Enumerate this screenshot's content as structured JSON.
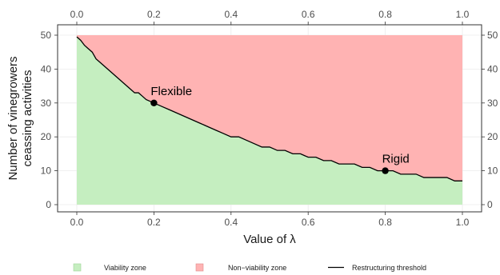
{
  "chart_data": {
    "type": "area",
    "xlabel": "Value of λ",
    "ylabel": [
      "Number of vinegrowers",
      "ceassing activities"
    ],
    "xlim": [
      0,
      1
    ],
    "ylim": [
      0,
      50
    ],
    "x_ticks": [
      "0.0",
      "0.2",
      "0.4",
      "0.6",
      "0.8",
      "1.0"
    ],
    "y_ticks": [
      "0",
      "10",
      "20",
      "30",
      "40",
      "50"
    ],
    "top_axis": true,
    "right_axis": true,
    "grid": true,
    "legend_position": "bottom",
    "colors": {
      "viability": "#c5eec0",
      "non_viability": "#ffb3b3",
      "threshold": "#000000",
      "grid": "#ebebeb",
      "panel_border": "#333333"
    },
    "zone_top": 50,
    "series": [
      {
        "name": "Restructuring threshold",
        "x": [
          0.0,
          0.01,
          0.02,
          0.03,
          0.04,
          0.05,
          0.06,
          0.07,
          0.08,
          0.09,
          0.1,
          0.11,
          0.12,
          0.13,
          0.14,
          0.15,
          0.16,
          0.17,
          0.18,
          0.19,
          0.2,
          0.22,
          0.24,
          0.26,
          0.28,
          0.3,
          0.32,
          0.34,
          0.36,
          0.38,
          0.4,
          0.42,
          0.44,
          0.46,
          0.48,
          0.5,
          0.52,
          0.54,
          0.56,
          0.58,
          0.6,
          0.62,
          0.64,
          0.66,
          0.68,
          0.7,
          0.72,
          0.74,
          0.76,
          0.78,
          0.8,
          0.82,
          0.84,
          0.86,
          0.88,
          0.9,
          0.92,
          0.94,
          0.96,
          0.98,
          1.0
        ],
        "values": [
          49.5,
          48.5,
          47,
          46,
          45,
          43,
          42,
          41,
          40,
          39,
          38,
          37,
          36,
          35,
          34,
          33,
          33,
          32,
          31,
          30.5,
          30,
          29,
          28,
          27,
          26,
          25,
          24,
          23,
          22,
          21,
          20,
          20,
          19,
          18,
          17,
          17,
          16,
          16,
          15,
          15,
          14,
          14,
          13,
          13,
          12,
          12,
          12,
          11,
          11,
          10,
          10,
          10,
          9,
          9,
          9,
          8,
          8,
          8,
          8,
          7,
          7
        ]
      }
    ],
    "annotations": [
      {
        "label": "Flexible",
        "x": 0.2,
        "y": 30
      },
      {
        "label": "Rigid",
        "x": 0.8,
        "y": 10
      }
    ],
    "legend": [
      {
        "label": "Viability zone",
        "kind": "fill-green"
      },
      {
        "label": "Non−viability zone",
        "kind": "fill-red"
      },
      {
        "label": "Restructuring threshold",
        "kind": "line"
      }
    ]
  }
}
